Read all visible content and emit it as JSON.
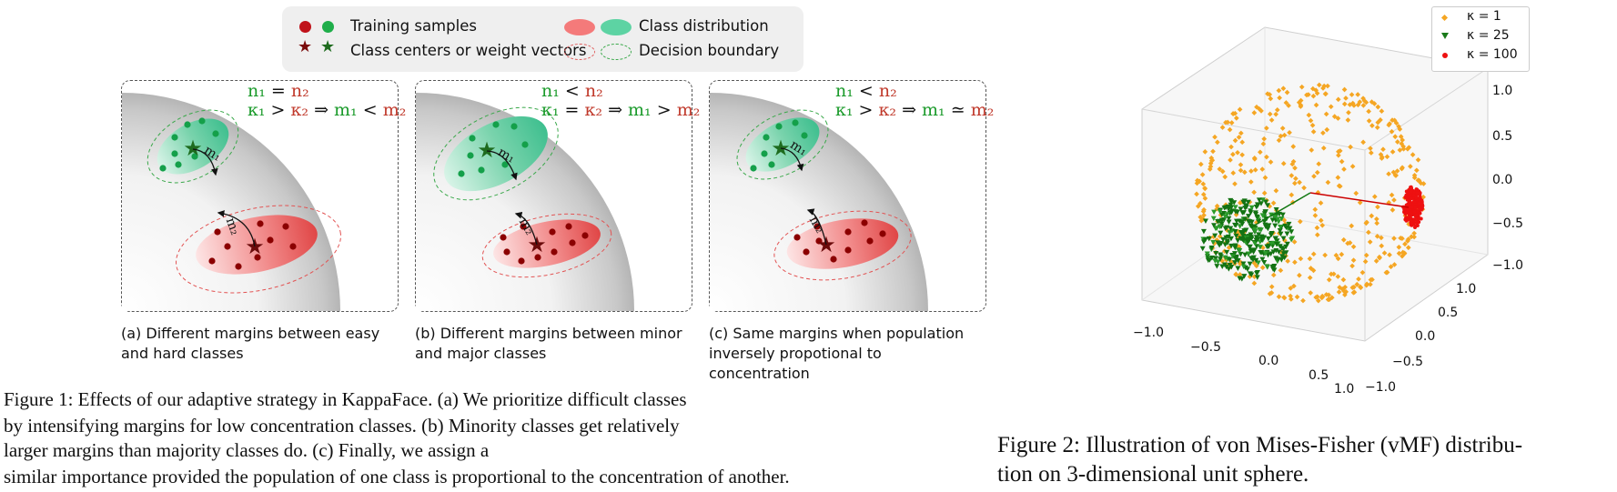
{
  "figure1": {
    "legend": {
      "training_samples": "Training samples",
      "class_distribution": "Class distribution",
      "class_centers": "Class centers or weight vectors",
      "decision_boundary": "Decision boundary"
    },
    "panels": [
      {
        "eq_line1": {
          "left": "n₁",
          "op": "=",
          "right": "n₂"
        },
        "eq_line2": {
          "left": "κ₁",
          "op": ">",
          "right": "κ₂",
          "implies": "⇒",
          "res_left": "m₁",
          "res_op": "<",
          "res_right": "m₂"
        },
        "label_top": "m₁",
        "label_bottom": "m₂",
        "caption": "(a) Different margins between easy and hard classes"
      },
      {
        "eq_line1": {
          "left": "n₁",
          "op": "<",
          "right": "n₂"
        },
        "eq_line2": {
          "left": "κ₁",
          "op": "=",
          "right": "κ₂",
          "implies": "⇒",
          "res_left": "m₁",
          "res_op": ">",
          "res_right": "m₂"
        },
        "label_top": "m₁",
        "label_bottom": "m₂",
        "caption": "(b) Different margins between minor and major classes"
      },
      {
        "eq_line1": {
          "left": "n₁",
          "op": "<",
          "right": "n₂"
        },
        "eq_line2": {
          "left": "κ₁",
          "op": ">",
          "right": "κ₂",
          "implies": "⇒",
          "res_left": "m₁",
          "res_op": "≃",
          "res_right": "m₂"
        },
        "label_top": "m₁",
        "label_bottom": "m₂",
        "caption": "(c) Same margins when population inversely propotional to concentration"
      }
    ],
    "caption_lines": [
      "Figure 1: Effects of our adaptive strategy in KappaFace. (a) We prioritize difficult classes",
      "by intensifying margins for low concentration classes. (b) Minority classes get relatively",
      "larger margins than majority classes do. (c) Finally, we assign a",
      "similar importance provided the population of one class is proportional to the concentration of another."
    ]
  },
  "figure2": {
    "legend": [
      {
        "label": "κ = 1",
        "color": "#f5a623",
        "marker": "diamond"
      },
      {
        "label": "κ = 25",
        "color": "#1a7a1a",
        "marker": "triangle"
      },
      {
        "label": "κ = 100",
        "color": "#ee1111",
        "marker": "circle"
      }
    ],
    "z_ticks": [
      "1.0",
      "0.5",
      "0.0",
      "−0.5",
      "−1.0"
    ],
    "x_ticks": [
      "−1.0",
      "−0.5",
      "0.0",
      "0.5",
      "1.0"
    ],
    "y_ticks": [
      "1.0",
      "0.5",
      "0.0",
      "−0.5",
      "−1.0"
    ],
    "caption_lines": [
      "Figure 2: Illustration of von Mises-Fisher (vMF) distribu-",
      "tion on 3-dimensional unit sphere."
    ]
  },
  "colors": {
    "green": "#2ea84a",
    "red": "#d32f2f",
    "dark_red": "#8b0000",
    "dark_green": "#1e6b1e",
    "orange": "#f5a623"
  }
}
